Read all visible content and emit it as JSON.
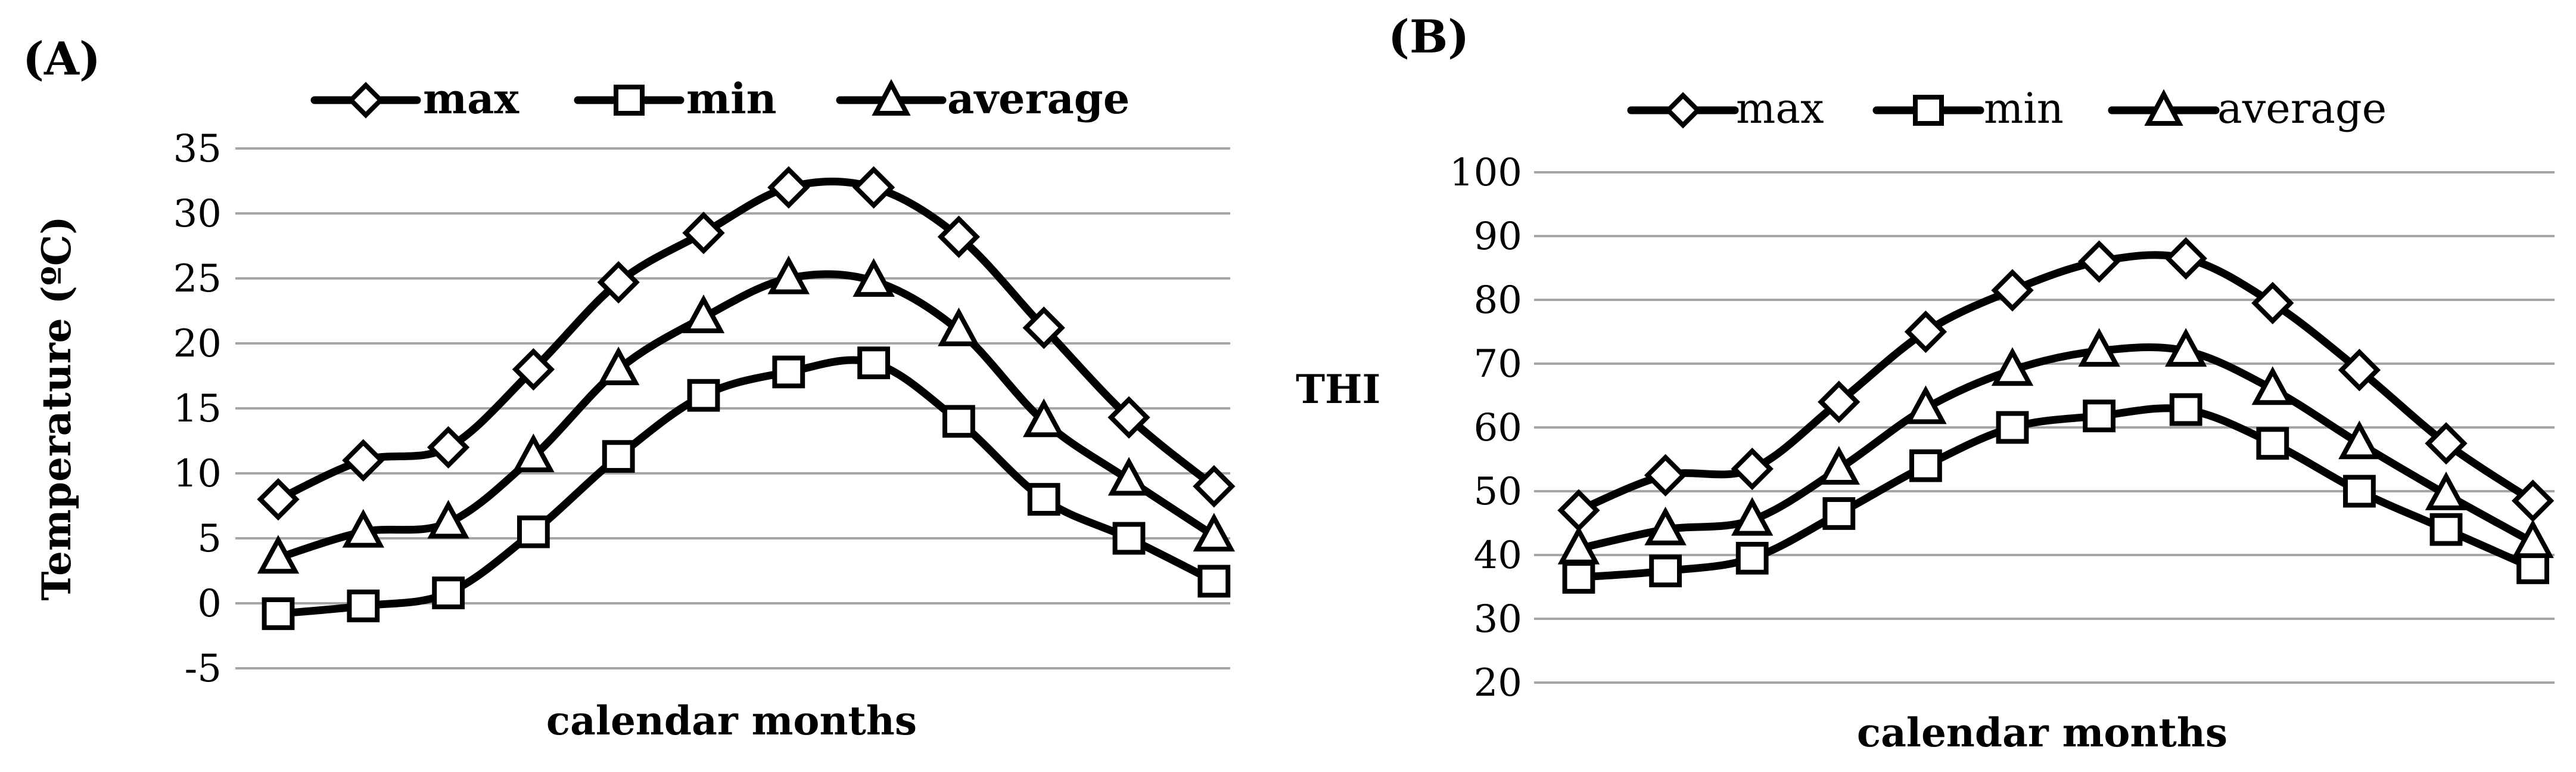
{
  "chart_data": [
    {
      "panel_label": "(A)",
      "type": "line",
      "title": "",
      "xlabel": "calendar months",
      "ylabel": "Temperature (ºC)",
      "ylim": [
        -5,
        35
      ],
      "yticks": [
        "35",
        "30",
        "25",
        "20",
        "15",
        "10",
        "5",
        "0",
        "-5"
      ],
      "ytick_values": [
        35,
        30,
        25,
        20,
        15,
        10,
        5,
        0,
        -5
      ],
      "grid": true,
      "legend_position": "top",
      "x": [
        1,
        2,
        3,
        4,
        5,
        6,
        7,
        8,
        9,
        10,
        11,
        12
      ],
      "series": [
        {
          "name": "max",
          "marker": "diamond",
          "values": [
            8,
            11,
            12,
            18,
            24.7,
            28.5,
            32,
            32,
            28.2,
            21.2,
            14.3,
            9
          ]
        },
        {
          "name": "min",
          "marker": "square",
          "values": [
            -0.8,
            -0.2,
            0.8,
            5.5,
            11.3,
            16,
            17.8,
            18.5,
            14,
            8,
            5,
            1.7
          ]
        },
        {
          "name": "average",
          "marker": "triangle",
          "values": [
            3.5,
            5.5,
            6.2,
            11.3,
            18,
            22,
            25,
            24.8,
            21,
            14,
            9.5,
            5.2
          ]
        }
      ]
    },
    {
      "panel_label": "(B)",
      "type": "line",
      "title": "",
      "xlabel": "calendar months",
      "ylabel": "THI",
      "ylim": [
        20,
        100
      ],
      "yticks": [
        "100",
        "90",
        "80",
        "70",
        "60",
        "50",
        "40",
        "30",
        "20"
      ],
      "ytick_values": [
        100,
        90,
        80,
        70,
        60,
        50,
        40,
        30,
        20
      ],
      "grid": true,
      "legend_position": "top",
      "x": [
        1,
        2,
        3,
        4,
        5,
        6,
        7,
        8,
        9,
        10,
        11,
        12
      ],
      "series": [
        {
          "name": "max",
          "marker": "diamond",
          "values": [
            47,
            52.5,
            53.5,
            64,
            75,
            81.5,
            86,
            86.5,
            79.5,
            69,
            57.5,
            48.5
          ]
        },
        {
          "name": "min",
          "marker": "square",
          "values": [
            36.5,
            37.5,
            39.5,
            46.5,
            54,
            60,
            61.8,
            62.8,
            57.5,
            50,
            44,
            38
          ]
        },
        {
          "name": "average",
          "marker": "triangle",
          "values": [
            41,
            44,
            45.5,
            53.5,
            63,
            69,
            72,
            72,
            66,
            57.5,
            49.5,
            42
          ]
        }
      ]
    }
  ]
}
